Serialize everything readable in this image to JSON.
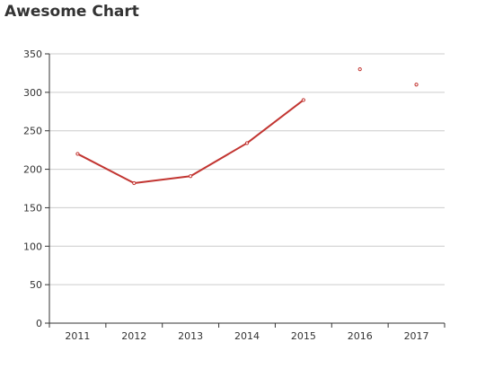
{
  "chart_data": {
    "type": "line",
    "title": "Awesome Chart",
    "xlabel": "",
    "ylabel": "",
    "categories": [
      "2011",
      "2012",
      "2013",
      "2014",
      "2015",
      "2016",
      "2017"
    ],
    "series": [
      {
        "values": [
          220,
          182,
          191,
          234,
          290,
          330,
          310
        ],
        "color": "#c23531"
      }
    ],
    "line_connected_through_index": 4,
    "ylim": [
      0,
      350
    ],
    "yticks": [
      0,
      50,
      100,
      150,
      200,
      250,
      300,
      350
    ],
    "grid": true,
    "legend": "none",
    "colors": {
      "series": "#c23531",
      "grid": "#cccccc",
      "axis": "#333333",
      "text": "#333333"
    }
  }
}
